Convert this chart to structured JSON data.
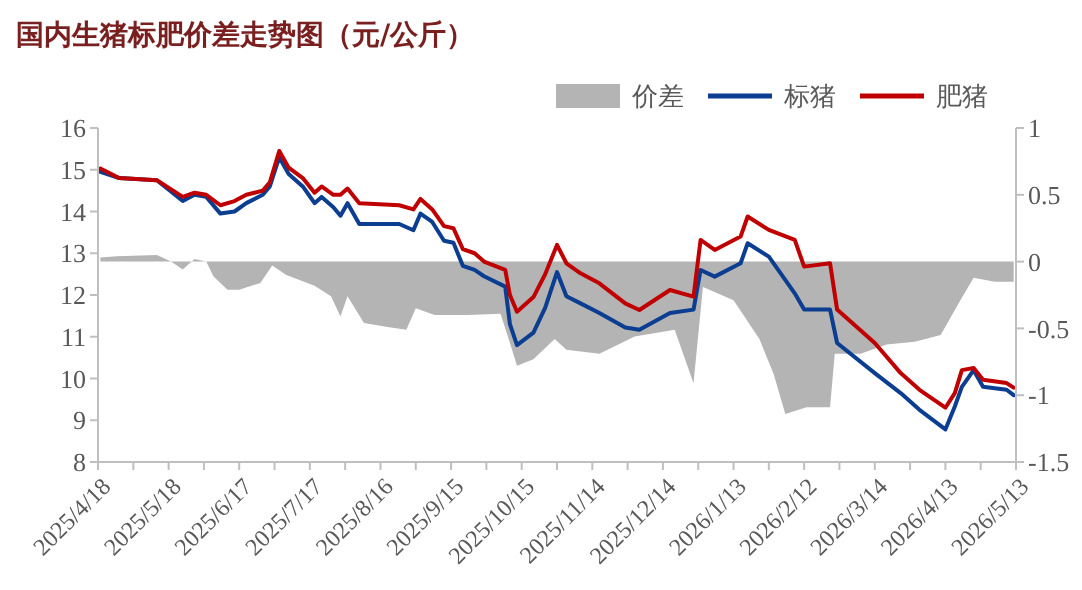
{
  "chart_data": {
    "type": "line",
    "title": "国内生猪标肥价差走势图（元/公斤）",
    "legend": "top",
    "grid": false,
    "line_style": "solid",
    "marker": "none",
    "xlim": [
      "2025-04-18",
      "2026-05-13"
    ],
    "xticks": [
      {
        "value": "2025-04-18",
        "label": "2025/4/18"
      },
      {
        "value": "2025-05-03",
        "label": null
      },
      {
        "value": "2025-05-18",
        "label": "2025/5/18"
      },
      {
        "value": "2025-06-02",
        "label": null
      },
      {
        "value": "2025-06-17",
        "label": "2025/6/17"
      },
      {
        "value": "2025-07-02",
        "label": null
      },
      {
        "value": "2025-07-17",
        "label": "2025/7/17"
      },
      {
        "value": "2025-08-01",
        "label": null
      },
      {
        "value": "2025-08-16",
        "label": "2025/8/16"
      },
      {
        "value": "2025-08-31",
        "label": null
      },
      {
        "value": "2025-09-15",
        "label": "2025/9/15"
      },
      {
        "value": "2025-09-30",
        "label": null
      },
      {
        "value": "2025-10-15",
        "label": "2025/10/15"
      },
      {
        "value": "2025-10-30",
        "label": null
      },
      {
        "value": "2025-11-14",
        "label": "2025/11/14"
      },
      {
        "value": "2025-11-29",
        "label": null
      },
      {
        "value": "2025-12-14",
        "label": "2025/12/14"
      },
      {
        "value": "2025-12-29",
        "label": null
      },
      {
        "value": "2026-01-13",
        "label": "2026/1/13"
      },
      {
        "value": "2026-01-28",
        "label": null
      },
      {
        "value": "2026-02-12",
        "label": "2026/2/12"
      },
      {
        "value": "2026-02-27",
        "label": null
      },
      {
        "value": "2026-03-14",
        "label": "2026/3/14"
      },
      {
        "value": "2026-03-29",
        "label": null
      },
      {
        "value": "2026-04-13",
        "label": "2026/4/13"
      },
      {
        "value": "2026-04-28",
        "label": null
      },
      {
        "value": "2026-05-13",
        "label": "2026/5/13"
      }
    ],
    "ylim": [
      8,
      16
    ],
    "yticks": [
      8,
      9,
      10,
      11,
      12,
      13,
      14,
      15,
      16
    ],
    "y2lim": [
      -1.5,
      1
    ],
    "y2ticks": [
      -1.5,
      -1,
      -0.5,
      0,
      0.5,
      1
    ],
    "series": [
      {
        "name": "价差",
        "type": "area",
        "axis": "y2",
        "color": "#b4b4b4",
        "x": [
          "2025-04-19",
          "2025-04-26",
          "2025-05-13",
          "2025-05-19",
          "2025-05-24",
          "2025-05-29",
          "2025-06-03",
          "2025-06-06",
          "2025-06-12",
          "2025-06-17",
          "2025-06-26",
          "2025-07-01",
          "2025-07-07",
          "2025-07-19",
          "2025-07-26",
          "2025-07-30",
          "2025-08-02",
          "2025-08-09",
          "2025-08-19",
          "2025-08-27",
          "2025-08-31",
          "2025-09-08",
          "2025-09-22",
          "2025-10-06",
          "2025-10-10",
          "2025-10-13",
          "2025-10-20",
          "2025-10-29",
          "2025-11-03",
          "2025-11-17",
          "2025-12-02",
          "2025-12-19",
          "2025-12-27",
          "2025-12-31",
          "2026-01-13",
          "2026-01-24",
          "2026-01-30",
          "2026-02-04",
          "2026-02-13",
          "2026-02-23",
          "2026-02-25",
          "2026-03-08",
          "2026-03-19",
          "2026-03-31",
          "2026-04-11",
          "2026-04-19",
          "2026-04-25",
          "2026-05-04",
          "2026-05-12"
        ],
        "values": [
          0.03,
          0.04,
          0.05,
          0,
          -0.06,
          0.02,
          0,
          -0.11,
          -0.21,
          -0.21,
          -0.16,
          -0.03,
          -0.1,
          -0.18,
          -0.26,
          -0.41,
          -0.26,
          -0.46,
          -0.49,
          -0.51,
          -0.35,
          -0.4,
          -0.4,
          -0.39,
          -0.61,
          -0.78,
          -0.73,
          -0.58,
          -0.66,
          -0.69,
          -0.56,
          -0.51,
          -0.91,
          -0.19,
          -0.29,
          -0.58,
          -0.84,
          -1.14,
          -1.09,
          -1.09,
          -0.69,
          -0.69,
          -0.62,
          -0.6,
          -0.55,
          -0.3,
          -0.12,
          -0.15,
          -0.15
        ]
      },
      {
        "name": "标猪",
        "color": "#0b3d91",
        "x": [
          "2025-04-19",
          "2025-04-27",
          "2025-05-13",
          "2025-05-24",
          "2025-05-29",
          "2025-06-03",
          "2025-06-09",
          "2025-06-15",
          "2025-06-20",
          "2025-06-27",
          "2025-06-30",
          "2025-07-04",
          "2025-07-08",
          "2025-07-14",
          "2025-07-19",
          "2025-07-22",
          "2025-07-27",
          "2025-07-30",
          "2025-08-02",
          "2025-08-07",
          "2025-08-24",
          "2025-08-30",
          "2025-09-02",
          "2025-09-07",
          "2025-09-12",
          "2025-09-16",
          "2025-09-20",
          "2025-09-25",
          "2025-09-29",
          "2025-10-08",
          "2025-10-10",
          "2025-10-13",
          "2025-10-20",
          "2025-10-25",
          "2025-10-30",
          "2025-11-03",
          "2025-11-09",
          "2025-11-17",
          "2025-11-28",
          "2025-12-04",
          "2025-12-17",
          "2025-12-27",
          "2025-12-30",
          "2026-01-05",
          "2026-01-16",
          "2026-01-19",
          "2026-01-28",
          "2026-02-08",
          "2026-02-12",
          "2026-02-23",
          "2026-02-26",
          "2026-03-14",
          "2026-03-25",
          "2026-04-02",
          "2026-04-13",
          "2026-04-17",
          "2026-04-20",
          "2026-04-25",
          "2026-04-29",
          "2026-05-09",
          "2026-05-12"
        ],
        "values": [
          14.95,
          14.8,
          14.75,
          14.25,
          14.4,
          14.35,
          13.95,
          14.0,
          14.2,
          14.4,
          14.6,
          15.3,
          14.9,
          14.6,
          14.2,
          14.35,
          14.1,
          13.9,
          14.2,
          13.7,
          13.7,
          13.55,
          13.95,
          13.75,
          13.3,
          13.25,
          12.7,
          12.6,
          12.45,
          12.2,
          11.3,
          10.8,
          11.1,
          11.7,
          12.55,
          11.97,
          11.8,
          11.57,
          11.22,
          11.17,
          11.57,
          11.65,
          12.6,
          12.44,
          12.76,
          13.24,
          12.92,
          12.04,
          11.65,
          11.65,
          10.85,
          10.13,
          9.65,
          9.25,
          8.78,
          9.33,
          9.8,
          10.2,
          9.8,
          9.73,
          9.6
        ]
      },
      {
        "name": "肥猪",
        "color": "#c00000",
        "x": [
          "2025-04-19",
          "2025-04-27",
          "2025-05-13",
          "2025-05-24",
          "2025-05-29",
          "2025-06-03",
          "2025-06-09",
          "2025-06-15",
          "2025-06-20",
          "2025-06-27",
          "2025-06-30",
          "2025-07-04",
          "2025-07-08",
          "2025-07-14",
          "2025-07-19",
          "2025-07-22",
          "2025-07-27",
          "2025-07-30",
          "2025-08-02",
          "2025-08-07",
          "2025-08-24",
          "2025-08-30",
          "2025-09-02",
          "2025-09-07",
          "2025-09-12",
          "2025-09-16",
          "2025-09-20",
          "2025-09-25",
          "2025-09-29",
          "2025-10-08",
          "2025-10-10",
          "2025-10-13",
          "2025-10-20",
          "2025-10-25",
          "2025-10-30",
          "2025-11-03",
          "2025-11-09",
          "2025-11-17",
          "2025-11-28",
          "2025-12-04",
          "2025-12-17",
          "2025-12-27",
          "2025-12-30",
          "2026-01-05",
          "2026-01-16",
          "2026-01-19",
          "2026-01-28",
          "2026-02-08",
          "2026-02-12",
          "2026-02-23",
          "2026-02-26",
          "2026-03-14",
          "2026-03-25",
          "2026-04-02",
          "2026-04-13",
          "2026-04-17",
          "2026-04-20",
          "2026-04-25",
          "2026-04-29",
          "2026-05-09",
          "2026-05-12"
        ],
        "values": [
          15.03,
          14.8,
          14.75,
          14.35,
          14.45,
          14.4,
          14.15,
          14.25,
          14.4,
          14.5,
          14.7,
          15.45,
          15.05,
          14.8,
          14.45,
          14.6,
          14.4,
          14.4,
          14.55,
          14.2,
          14.15,
          14.05,
          14.3,
          14.05,
          13.65,
          13.6,
          13.1,
          13.0,
          12.8,
          12.6,
          12.0,
          11.6,
          11.95,
          12.5,
          13.2,
          12.76,
          12.52,
          12.28,
          11.8,
          11.64,
          12.12,
          11.96,
          13.32,
          13.08,
          13.4,
          13.88,
          13.56,
          13.32,
          12.68,
          12.76,
          11.65,
          10.85,
          10.13,
          9.73,
          9.3,
          9.65,
          10.2,
          10.25,
          9.97,
          9.89,
          9.78
        ]
      }
    ]
  }
}
